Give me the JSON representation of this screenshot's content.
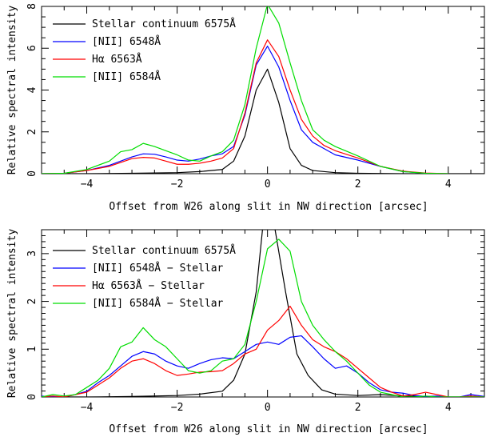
{
  "chart_data": [
    {
      "type": "line",
      "xlabel": "Offset from W26 along slit in NW direction [arcsec]",
      "ylabel": "Relative spectral intensity",
      "xlim": [
        -5,
        4.8
      ],
      "ylim": [
        0,
        8
      ],
      "x_ticks": [
        -4,
        -2,
        0,
        2,
        4
      ],
      "x_tick_labels": [
        "−4",
        "−2",
        "0",
        "2",
        "4"
      ],
      "y_ticks": [
        0,
        2,
        4,
        6,
        8
      ],
      "y_tick_labels": [
        "0",
        "2",
        "4",
        "6",
        "8"
      ],
      "legend_position": "top-left",
      "series": [
        {
          "name": "Stellar continuum 6575Å",
          "color": "#000000",
          "x": [
            -5,
            -4.0,
            -3.0,
            -2.0,
            -1.5,
            -1.0,
            -0.75,
            -0.5,
            -0.25,
            0.0,
            0.25,
            0.5,
            0.75,
            1.0,
            1.5,
            2.0,
            3.0,
            4.0,
            4.8
          ],
          "y": [
            0,
            0,
            0.02,
            0.05,
            0.1,
            0.2,
            0.6,
            1.8,
            4.0,
            5.0,
            3.4,
            1.2,
            0.4,
            0.15,
            0.05,
            0.02,
            0,
            0,
            0
          ]
        },
        {
          "name": "[NII] 6548Å",
          "color": "#0000ff",
          "x": [
            -5,
            -4.5,
            -4.0,
            -3.5,
            -3.0,
            -2.75,
            -2.5,
            -2.25,
            -2.0,
            -1.75,
            -1.5,
            -1.25,
            -1.0,
            -0.75,
            -0.5,
            -0.25,
            0.0,
            0.25,
            0.5,
            0.75,
            1.0,
            1.25,
            1.5,
            2.0,
            2.5,
            3.0,
            3.5,
            4.0
          ],
          "y": [
            0,
            0.02,
            0.15,
            0.4,
            0.8,
            0.95,
            0.93,
            0.8,
            0.65,
            0.6,
            0.7,
            0.85,
            0.95,
            1.3,
            2.8,
            5.2,
            6.1,
            5.1,
            3.5,
            2.1,
            1.5,
            1.2,
            0.9,
            0.65,
            0.35,
            0.1,
            0.02,
            0
          ]
        },
        {
          "name": "Hα 6563Å",
          "color": "#ff0000",
          "x": [
            -5,
            -4.5,
            -4.0,
            -3.5,
            -3.0,
            -2.75,
            -2.5,
            -2.25,
            -2.0,
            -1.75,
            -1.5,
            -1.25,
            -1.0,
            -0.75,
            -0.5,
            -0.25,
            0.0,
            0.25,
            0.5,
            0.75,
            1.0,
            1.25,
            1.5,
            2.0,
            2.5,
            3.0,
            3.5,
            4.0
          ],
          "y": [
            0,
            0.02,
            0.15,
            0.35,
            0.72,
            0.78,
            0.75,
            0.6,
            0.45,
            0.45,
            0.5,
            0.6,
            0.75,
            1.2,
            2.9,
            5.3,
            6.4,
            5.6,
            4.0,
            2.6,
            1.8,
            1.35,
            1.1,
            0.75,
            0.35,
            0.12,
            0.03,
            0
          ]
        },
        {
          "name": "[NII] 6584Å",
          "color": "#00dd00",
          "x": [
            -5,
            -4.5,
            -4.0,
            -3.5,
            -3.25,
            -3.0,
            -2.75,
            -2.5,
            -2.25,
            -2.0,
            -1.75,
            -1.5,
            -1.25,
            -1.0,
            -0.75,
            -0.5,
            -0.25,
            0.0,
            0.25,
            0.5,
            0.75,
            1.0,
            1.25,
            1.5,
            2.0,
            2.5,
            3.0,
            3.5,
            4.0
          ],
          "y": [
            0,
            0.02,
            0.2,
            0.6,
            1.05,
            1.15,
            1.45,
            1.3,
            1.1,
            0.9,
            0.65,
            0.6,
            0.85,
            1.05,
            1.6,
            3.3,
            6.0,
            8.1,
            7.2,
            5.3,
            3.5,
            2.1,
            1.6,
            1.3,
            0.85,
            0.35,
            0.1,
            0.02,
            0
          ]
        }
      ]
    },
    {
      "type": "line",
      "xlabel": "Offset from W26 along slit in NW direction [arcsec]",
      "ylabel": "Relative spectral intensity",
      "xlim": [
        -5,
        4.8
      ],
      "ylim": [
        0,
        3.5
      ],
      "x_ticks": [
        -4,
        -2,
        0,
        2,
        4
      ],
      "x_tick_labels": [
        "−4",
        "−2",
        "0",
        "2",
        "4"
      ],
      "y_ticks": [
        0,
        1,
        2,
        3
      ],
      "y_tick_labels": [
        "0",
        "1",
        "2",
        "3"
      ],
      "legend_position": "top-left",
      "series": [
        {
          "name": "Stellar continuum 6575Å",
          "color": "#000000",
          "x": [
            -5,
            -4.0,
            -3.0,
            -2.0,
            -1.5,
            -1.0,
            -0.75,
            -0.5,
            -0.25,
            -0.1,
            0.15,
            0.4,
            0.65,
            0.9,
            1.2,
            1.5,
            2.0,
            2.5,
            3.0,
            4.0,
            4.8
          ],
          "y": [
            0,
            0,
            0.01,
            0.03,
            0.06,
            0.12,
            0.35,
            0.9,
            2.2,
            3.6,
            3.6,
            2.2,
            0.9,
            0.45,
            0.15,
            0.06,
            0.03,
            0.05,
            0.02,
            0,
            0
          ]
        },
        {
          "name": "[NII] 6548Å − Stellar",
          "color": "#0000ff",
          "x": [
            -5,
            -4.75,
            -4.5,
            -4.25,
            -4.0,
            -3.75,
            -3.5,
            -3.25,
            -3.0,
            -2.75,
            -2.5,
            -2.25,
            -2.0,
            -1.75,
            -1.5,
            -1.25,
            -1.0,
            -0.75,
            -0.5,
            -0.25,
            0.0,
            0.25,
            0.5,
            0.75,
            1.0,
            1.25,
            1.5,
            1.75,
            2.0,
            2.25,
            2.5,
            2.75,
            3.0,
            3.25,
            3.5,
            3.75,
            4.0,
            4.25,
            4.5,
            4.8
          ],
          "y": [
            0.02,
            0.0,
            0.0,
            0.05,
            0.12,
            0.3,
            0.45,
            0.65,
            0.85,
            0.95,
            0.9,
            0.75,
            0.65,
            0.6,
            0.7,
            0.78,
            0.82,
            0.8,
            0.95,
            1.1,
            1.15,
            1.1,
            1.25,
            1.28,
            1.05,
            0.8,
            0.6,
            0.65,
            0.5,
            0.3,
            0.15,
            0.1,
            0.08,
            0.03,
            0.01,
            0.02,
            0.0,
            0.0,
            0.05,
            0.01
          ]
        },
        {
          "name": "Hα 6563Å − Stellar",
          "color": "#ff0000",
          "x": [
            -5,
            -4.75,
            -4.5,
            -4.25,
            -4.0,
            -3.75,
            -3.5,
            -3.25,
            -3.0,
            -2.75,
            -2.5,
            -2.25,
            -2.0,
            -1.75,
            -1.5,
            -1.25,
            -1.0,
            -0.75,
            -0.5,
            -0.25,
            0.0,
            0.25,
            0.5,
            0.75,
            1.0,
            1.25,
            1.5,
            1.75,
            2.0,
            2.25,
            2.5,
            2.75,
            3.0,
            3.25,
            3.5,
            3.75,
            4.0,
            4.25,
            4.5,
            4.8
          ],
          "y": [
            0.0,
            0.02,
            0.0,
            0.05,
            0.1,
            0.25,
            0.4,
            0.6,
            0.75,
            0.8,
            0.7,
            0.55,
            0.45,
            0.48,
            0.52,
            0.53,
            0.55,
            0.7,
            0.9,
            1.0,
            1.4,
            1.6,
            1.9,
            1.5,
            1.2,
            1.05,
            0.95,
            0.8,
            0.6,
            0.4,
            0.2,
            0.1,
            0.02,
            0.05,
            0.1,
            0.05,
            0.0,
            0.0,
            0.02,
            0.0
          ]
        },
        {
          "name": "[NII] 6584Å − Stellar",
          "color": "#00dd00",
          "x": [
            -5,
            -4.75,
            -4.5,
            -4.25,
            -4.0,
            -3.75,
            -3.5,
            -3.25,
            -3.0,
            -2.75,
            -2.5,
            -2.25,
            -2.0,
            -1.75,
            -1.5,
            -1.25,
            -1.0,
            -0.75,
            -0.5,
            -0.25,
            0.0,
            0.25,
            0.5,
            0.75,
            1.0,
            1.25,
            1.5,
            1.75,
            2.0,
            2.25,
            2.5,
            2.75,
            3.0,
            3.25,
            3.5,
            3.75,
            4.0,
            4.25,
            4.5,
            4.8
          ],
          "y": [
            0.0,
            0.05,
            0.02,
            0.05,
            0.2,
            0.35,
            0.6,
            1.05,
            1.15,
            1.45,
            1.2,
            1.05,
            0.8,
            0.55,
            0.5,
            0.55,
            0.75,
            0.8,
            1.1,
            2.0,
            3.1,
            3.3,
            3.05,
            2.0,
            1.5,
            1.2,
            0.95,
            0.75,
            0.5,
            0.25,
            0.1,
            0.05,
            0.0,
            0.0,
            0.02,
            0.0,
            0.0,
            0.0,
            0.0,
            0.0
          ]
        }
      ]
    }
  ]
}
